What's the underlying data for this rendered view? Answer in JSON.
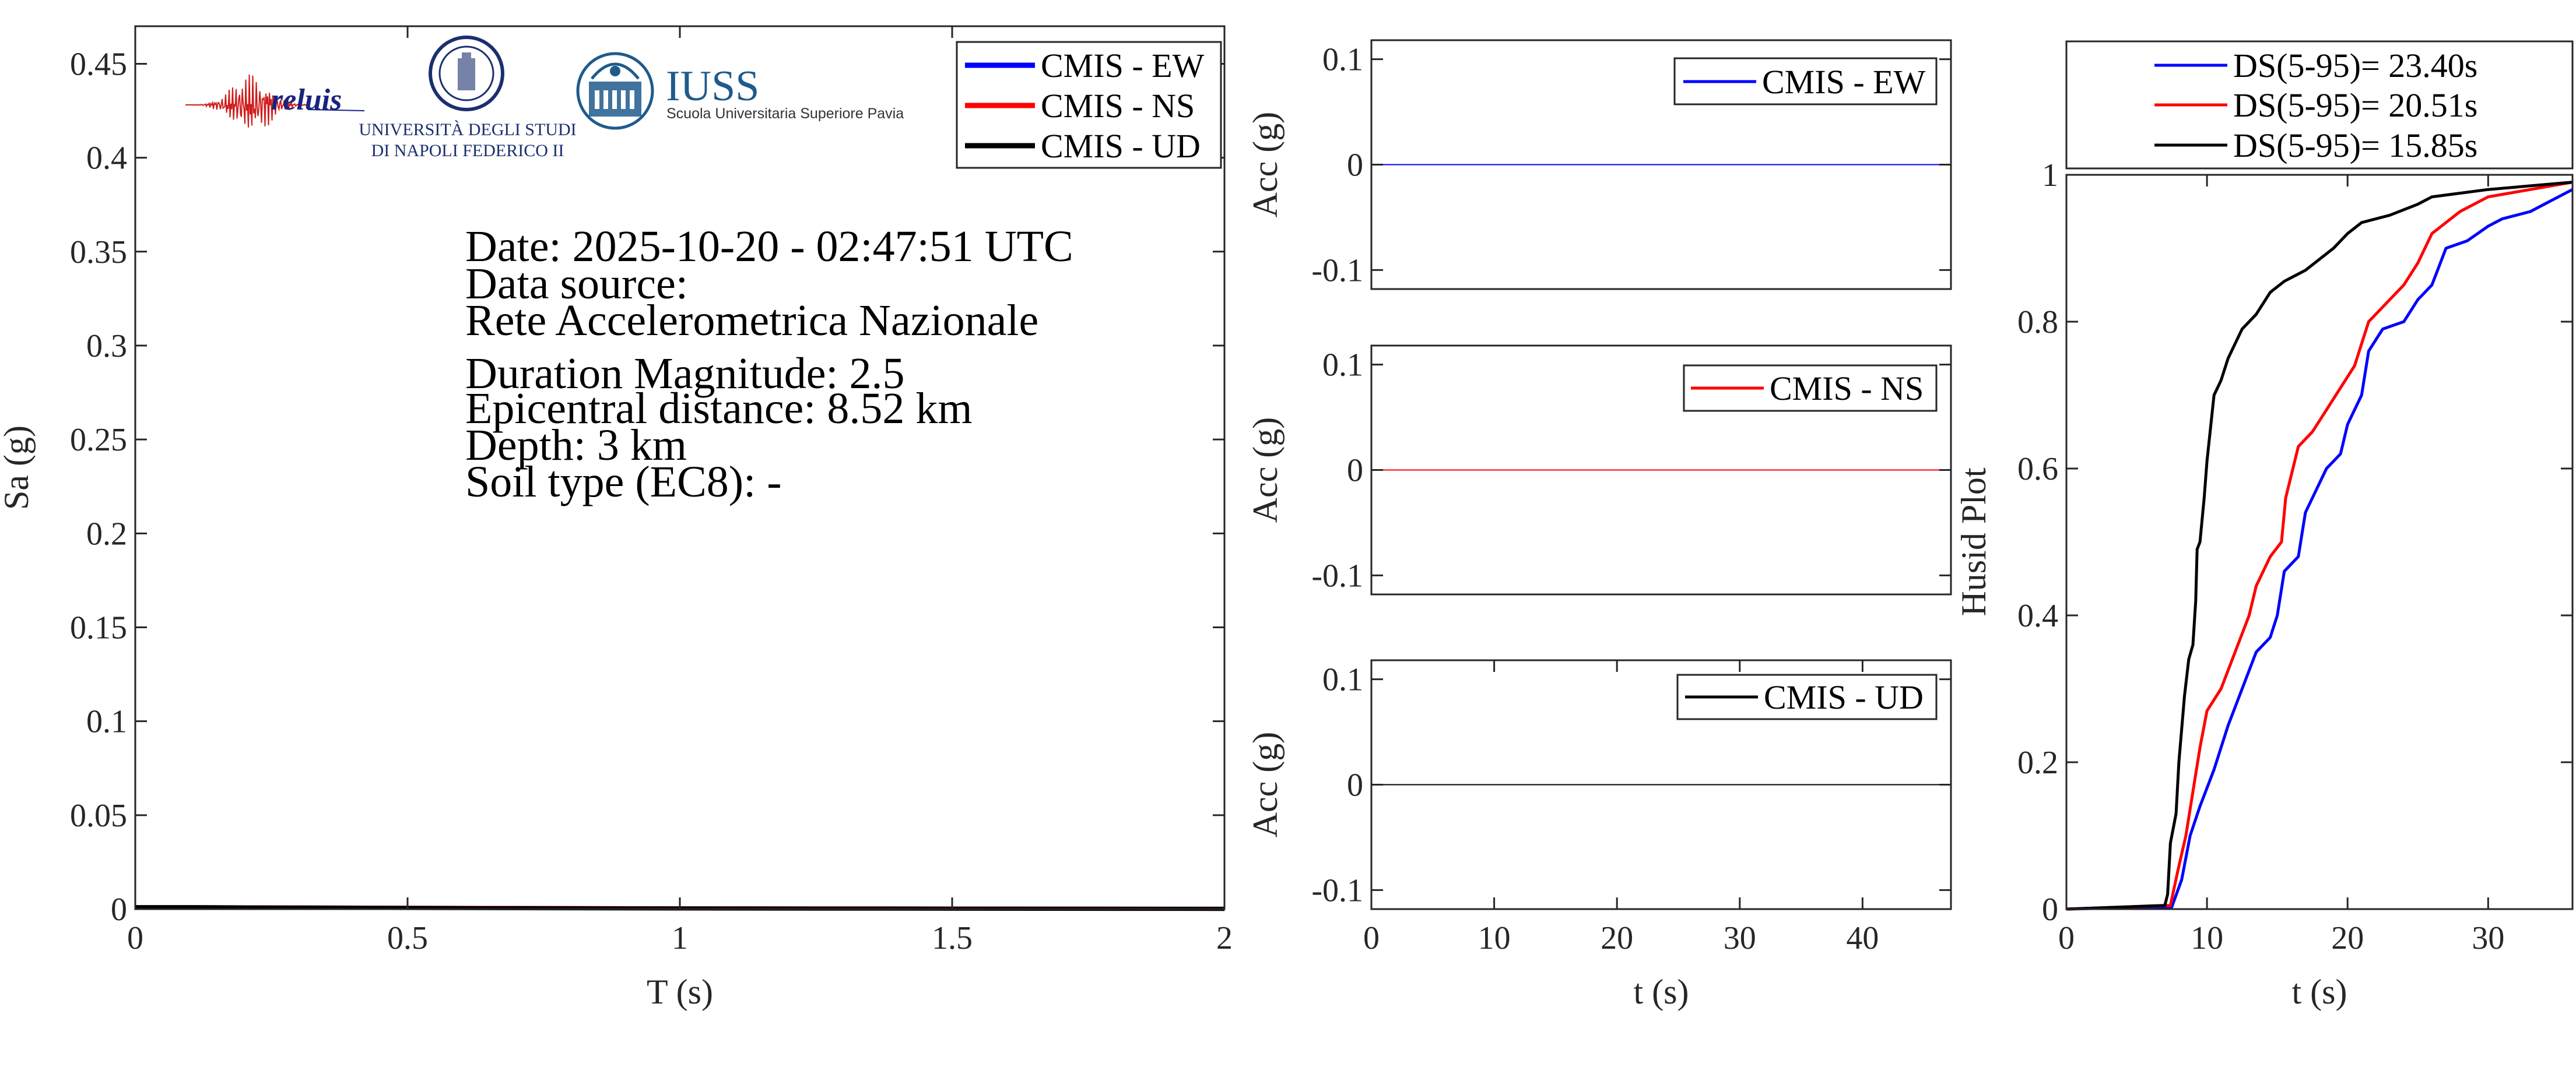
{
  "logos": {
    "reluis": {
      "text": "reluis",
      "color": "#d01c1c",
      "text_color": "#1a237e"
    },
    "unina": {
      "line1": "UNIVERSITÀ DEGLI STUDI",
      "line2": "DI NAPOLI FEDERICO II",
      "color": "#1a2f6e"
    },
    "iuss": {
      "title": "IUSS",
      "subtitle": "Scuola Universitaria Superiore Pavia",
      "color": "#1f5a8c"
    }
  },
  "chart_data": [
    {
      "type": "line",
      "xlabel": "T (s)",
      "ylabel": "Sa (g)",
      "xlim": [
        0,
        2
      ],
      "ylim": [
        0,
        0.47
      ],
      "xticks": [
        0,
        0.5,
        1,
        1.5,
        2
      ],
      "xticklabels": [
        "0",
        "0.5",
        "1",
        "1.5",
        "2"
      ],
      "yticks": [
        0,
        0.05,
        0.1,
        0.15,
        0.2,
        0.25,
        0.3,
        0.35,
        0.4,
        0.45
      ],
      "yticklabels": [
        "0",
        "0.05",
        "0.1",
        "0.15",
        "0.2",
        "0.25",
        "0.3",
        "0.35",
        "0.4",
        "0.45"
      ],
      "grid": false,
      "legend_position": "top-right",
      "series": [
        {
          "name": "CMIS - EW",
          "color": "#0000ff",
          "x": [
            0,
            0.1,
            0.5,
            1,
            1.5,
            2
          ],
          "y": [
            0.001,
            0.001,
            0.0007,
            0.0004,
            0.0003,
            0.0002
          ]
        },
        {
          "name": "CMIS - NS",
          "color": "#ff0000",
          "x": [
            0,
            0.1,
            0.5,
            1,
            1.5,
            2
          ],
          "y": [
            0.001,
            0.001,
            0.0007,
            0.0004,
            0.0003,
            0.0002
          ]
        },
        {
          "name": "CMIS - UD",
          "color": "#000000",
          "x": [
            0,
            0.1,
            0.5,
            1,
            1.5,
            2
          ],
          "y": [
            0.001,
            0.001,
            0.0006,
            0.0003,
            0.0002,
            0.0001
          ]
        }
      ],
      "annotations": [
        "Date: 2025-10-20 - 02:47:51 UTC",
        "Data source:",
        "Rete Accelerometrica Nazionale",
        "Duration Magnitude: 2.5",
        "Epicentral distance: 8.52 km",
        "Depth: 3 km",
        "Soil type (EC8): -"
      ]
    },
    {
      "type": "line",
      "xlabel": "",
      "ylabel": "Acc (g)",
      "xlim": [
        0,
        47.2
      ],
      "ylim": [
        -0.118,
        0.118
      ],
      "xticks": [],
      "xticklabels": [],
      "yticks": [
        -0.1,
        0,
        0.1
      ],
      "yticklabels": [
        "-0.1",
        "0",
        "0.1"
      ],
      "grid": false,
      "legend_position": "top-right",
      "series": [
        {
          "name": "CMIS - EW",
          "color": "#0000ff",
          "x": [
            0,
            47.2
          ],
          "y": [
            0,
            0
          ]
        }
      ]
    },
    {
      "type": "line",
      "xlabel": "",
      "ylabel": "Acc (g)",
      "xlim": [
        0,
        47.2
      ],
      "ylim": [
        -0.118,
        0.118
      ],
      "xticks": [],
      "xticklabels": [],
      "yticks": [
        -0.1,
        0,
        0.1
      ],
      "yticklabels": [
        "-0.1",
        "0",
        "0.1"
      ],
      "grid": false,
      "legend_position": "top-right",
      "series": [
        {
          "name": "CMIS - NS",
          "color": "#ff0000",
          "x": [
            0,
            47.2
          ],
          "y": [
            0,
            0
          ]
        }
      ]
    },
    {
      "type": "line",
      "xlabel": "t (s)",
      "ylabel": "Acc (g)",
      "xlim": [
        0,
        47.2
      ],
      "ylim": [
        -0.118,
        0.118
      ],
      "xticks": [
        0,
        10,
        20,
        30,
        40
      ],
      "xticklabels": [
        "0",
        "10",
        "20",
        "30",
        "40"
      ],
      "yticks": [
        -0.1,
        0,
        0.1
      ],
      "yticklabels": [
        "-0.1",
        "0",
        "0.1"
      ],
      "grid": false,
      "legend_position": "top-right",
      "series": [
        {
          "name": "CMIS - UD",
          "color": "#000000",
          "x": [
            0,
            47.2
          ],
          "y": [
            0,
            0
          ]
        }
      ]
    },
    {
      "type": "line",
      "xlabel": "t (s)",
      "ylabel": "Husid Plot",
      "xlim": [
        0,
        36
      ],
      "ylim": [
        0,
        1
      ],
      "xticks": [
        0,
        10,
        20,
        30
      ],
      "xticklabels": [
        "0",
        "10",
        "20",
        "30"
      ],
      "yticks": [
        0,
        0.2,
        0.4,
        0.6,
        0.8,
        1
      ],
      "yticklabels": [
        "0",
        "0.2",
        "0.4",
        "0.6",
        "0.8",
        "1"
      ],
      "grid": false,
      "legend_position": "top-outside",
      "series": [
        {
          "name": "DS(5-95)= 23.40s",
          "color": "#0000ff",
          "x": [
            0,
            7.5,
            8.2,
            8.8,
            9.5,
            10.5,
            11.5,
            12.5,
            13.5,
            14.5,
            15,
            15.5,
            16.5,
            17,
            18,
            18.5,
            19.5,
            20,
            21,
            21.5,
            22.5,
            24,
            25,
            26,
            27,
            28.5,
            30,
            31,
            33,
            34,
            36
          ],
          "y": [
            0,
            0.003,
            0.04,
            0.1,
            0.14,
            0.19,
            0.25,
            0.3,
            0.35,
            0.37,
            0.4,
            0.46,
            0.48,
            0.54,
            0.58,
            0.6,
            0.62,
            0.66,
            0.7,
            0.76,
            0.79,
            0.8,
            0.83,
            0.85,
            0.9,
            0.91,
            0.93,
            0.94,
            0.95,
            0.96,
            0.98
          ]
        },
        {
          "name": "DS(5-95)= 20.51s",
          "color": "#ff0000",
          "x": [
            0,
            7.4,
            7.9,
            8.5,
            9,
            9.5,
            10,
            11,
            12,
            13,
            13.5,
            14.5,
            15.3,
            15.6,
            16.5,
            17.5,
            18.5,
            19.5,
            20.5,
            21,
            21.5,
            23,
            24,
            25,
            26,
            28,
            30,
            33,
            36
          ],
          "y": [
            0,
            0.005,
            0.05,
            0.1,
            0.16,
            0.22,
            0.27,
            0.3,
            0.35,
            0.4,
            0.44,
            0.48,
            0.5,
            0.56,
            0.63,
            0.65,
            0.68,
            0.71,
            0.74,
            0.77,
            0.8,
            0.83,
            0.85,
            0.88,
            0.92,
            0.95,
            0.97,
            0.98,
            0.99
          ]
        },
        {
          "name": "DS(5-95)= 15.85s",
          "color": "#000000",
          "x": [
            0,
            7,
            7.2,
            7.4,
            7.8,
            8,
            8.4,
            8.7,
            9,
            9.2,
            9.3,
            9.5,
            9.8,
            10,
            10.5,
            11,
            11.5,
            12,
            12.5,
            13.5,
            14.5,
            15.5,
            17,
            19,
            20,
            21,
            23,
            25,
            26,
            30,
            36
          ],
          "y": [
            0,
            0.005,
            0.02,
            0.09,
            0.13,
            0.2,
            0.29,
            0.34,
            0.36,
            0.42,
            0.49,
            0.5,
            0.56,
            0.61,
            0.7,
            0.72,
            0.75,
            0.77,
            0.79,
            0.81,
            0.84,
            0.855,
            0.87,
            0.9,
            0.92,
            0.935,
            0.945,
            0.96,
            0.97,
            0.98,
            0.99
          ]
        }
      ]
    }
  ]
}
